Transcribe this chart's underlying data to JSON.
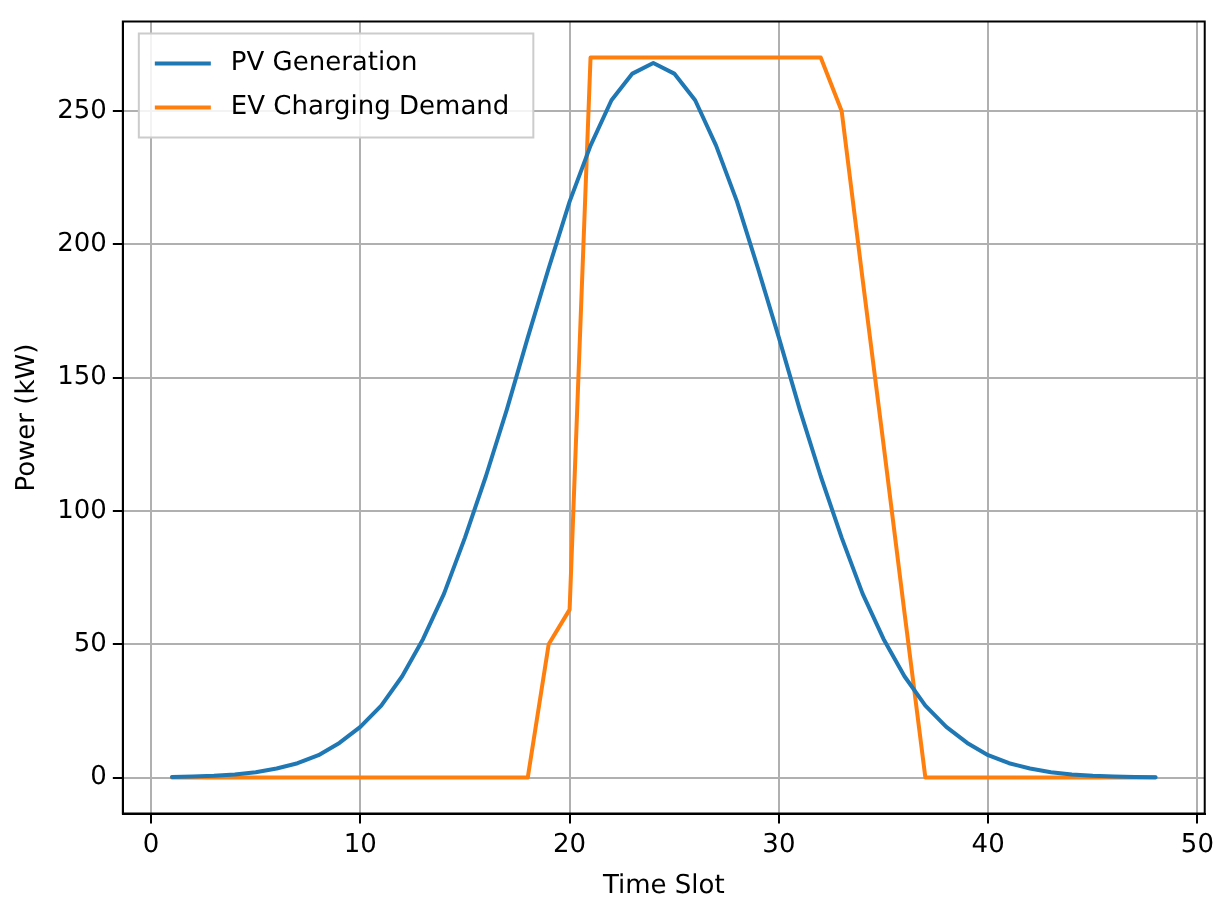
{
  "chart_data": {
    "type": "line",
    "xlabel": "Time Slot",
    "ylabel": "Power (kW)",
    "x": [
      1,
      2,
      3,
      4,
      5,
      6,
      7,
      8,
      9,
      10,
      11,
      12,
      13,
      14,
      15,
      16,
      17,
      18,
      19,
      20,
      21,
      22,
      23,
      24,
      25,
      26,
      27,
      28,
      29,
      30,
      31,
      32,
      33,
      34,
      35,
      36,
      37,
      38,
      39,
      40,
      41,
      42,
      43,
      44,
      45,
      46,
      47,
      48
    ],
    "series": [
      {
        "name": "PV Generation",
        "color": "#1f77b4",
        "values": [
          0.2,
          0.4,
          0.7,
          1.2,
          2,
          3.4,
          5.4,
          8.4,
          13,
          19,
          27,
          38,
          52,
          69,
          90,
          113,
          138,
          165,
          191,
          216,
          237,
          254,
          264,
          268,
          264,
          254,
          237,
          216,
          191,
          165,
          138,
          113,
          90,
          69,
          52,
          38,
          27,
          19,
          13,
          8.4,
          5.4,
          3.4,
          2,
          1.2,
          0.7,
          0.4,
          0.2,
          0.1
        ]
      },
      {
        "name": "EV Charging Demand",
        "color": "#ff7f0e",
        "values": [
          0,
          0,
          0,
          0,
          0,
          0,
          0,
          0,
          0,
          0,
          0,
          0,
          0,
          0,
          0,
          0,
          0,
          0,
          50,
          63,
          270,
          270,
          270,
          270,
          270,
          270,
          270,
          270,
          270,
          270,
          270,
          270,
          250,
          187,
          125,
          62,
          0,
          0,
          0,
          0,
          0,
          0,
          0,
          0,
          0,
          0,
          0,
          0
        ]
      }
    ],
    "xlim": [
      -1.35,
      50.35
    ],
    "xticks": [
      0,
      10,
      20,
      30,
      40,
      50
    ],
    "ylim": [
      -13.5,
      283.5
    ],
    "yticks": [
      0,
      50,
      100,
      150,
      200,
      250
    ],
    "grid": true,
    "legend": "top left",
    "marker": "none",
    "line_style": "solid"
  }
}
